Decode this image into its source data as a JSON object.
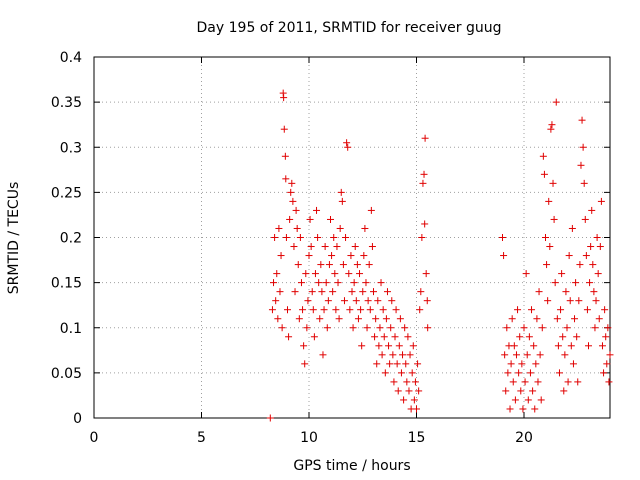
{
  "chart_data": {
    "type": "scatter",
    "title": "Day 195 of 2011, SRMTID for receiver guug",
    "xlabel": "GPS time / hours",
    "ylabel": "SRMTID / TECUs",
    "xlim": [
      0,
      24
    ],
    "ylim": [
      0,
      0.4
    ],
    "xticks": [
      0,
      5,
      10,
      15,
      20
    ],
    "xtick_labels": [
      "0",
      "5",
      "10",
      "15",
      "20"
    ],
    "yticks": [
      0,
      0.05,
      0.1,
      0.15,
      0.2,
      0.25,
      0.3,
      0.35,
      0.4
    ],
    "ytick_labels": [
      "0",
      "0.05",
      "0.1",
      "0.15",
      "0.2",
      "0.25",
      "0.3",
      "0.35",
      "0.4"
    ],
    "grid": true,
    "color": "#e00000",
    "marker": "plus",
    "series": [
      {
        "name": "SRMTID",
        "points": [
          [
            8.2,
            0.0
          ],
          [
            8.3,
            0.12
          ],
          [
            8.35,
            0.15
          ],
          [
            8.4,
            0.2
          ],
          [
            8.45,
            0.13
          ],
          [
            8.5,
            0.16
          ],
          [
            8.55,
            0.11
          ],
          [
            8.6,
            0.21
          ],
          [
            8.65,
            0.14
          ],
          [
            8.7,
            0.18
          ],
          [
            8.75,
            0.1
          ],
          [
            8.8,
            0.36
          ],
          [
            8.82,
            0.355
          ],
          [
            8.85,
            0.32
          ],
          [
            8.9,
            0.29
          ],
          [
            8.92,
            0.265
          ],
          [
            8.95,
            0.2
          ],
          [
            9.0,
            0.12
          ],
          [
            9.05,
            0.09
          ],
          [
            9.1,
            0.22
          ],
          [
            9.15,
            0.25
          ],
          [
            9.2,
            0.26
          ],
          [
            9.25,
            0.24
          ],
          [
            9.3,
            0.19
          ],
          [
            9.35,
            0.14
          ],
          [
            9.4,
            0.23
          ],
          [
            9.45,
            0.21
          ],
          [
            9.5,
            0.17
          ],
          [
            9.55,
            0.11
          ],
          [
            9.6,
            0.2
          ],
          [
            9.65,
            0.15
          ],
          [
            9.7,
            0.12
          ],
          [
            9.75,
            0.08
          ],
          [
            9.8,
            0.06
          ],
          [
            9.85,
            0.16
          ],
          [
            9.9,
            0.1
          ],
          [
            9.95,
            0.13
          ],
          [
            10.0,
            0.18
          ],
          [
            10.05,
            0.22
          ],
          [
            10.1,
            0.19
          ],
          [
            10.15,
            0.14
          ],
          [
            10.2,
            0.12
          ],
          [
            10.25,
            0.09
          ],
          [
            10.3,
            0.16
          ],
          [
            10.35,
            0.23
          ],
          [
            10.4,
            0.2
          ],
          [
            10.45,
            0.15
          ],
          [
            10.5,
            0.11
          ],
          [
            10.55,
            0.17
          ],
          [
            10.6,
            0.14
          ],
          [
            10.65,
            0.07
          ],
          [
            10.7,
            0.12
          ],
          [
            10.75,
            0.19
          ],
          [
            10.8,
            0.15
          ],
          [
            10.85,
            0.1
          ],
          [
            10.9,
            0.13
          ],
          [
            10.95,
            0.17
          ],
          [
            11.0,
            0.22
          ],
          [
            11.05,
            0.18
          ],
          [
            11.1,
            0.14
          ],
          [
            11.15,
            0.2
          ],
          [
            11.2,
            0.16
          ],
          [
            11.25,
            0.12
          ],
          [
            11.3,
            0.19
          ],
          [
            11.35,
            0.15
          ],
          [
            11.4,
            0.11
          ],
          [
            11.45,
            0.21
          ],
          [
            11.5,
            0.25
          ],
          [
            11.55,
            0.24
          ],
          [
            11.6,
            0.17
          ],
          [
            11.65,
            0.13
          ],
          [
            11.7,
            0.2
          ],
          [
            11.75,
            0.305
          ],
          [
            11.8,
            0.3
          ],
          [
            11.85,
            0.16
          ],
          [
            11.9,
            0.12
          ],
          [
            11.95,
            0.18
          ],
          [
            12.0,
            0.14
          ],
          [
            12.05,
            0.1
          ],
          [
            12.1,
            0.15
          ],
          [
            12.15,
            0.19
          ],
          [
            12.2,
            0.13
          ],
          [
            12.25,
            0.17
          ],
          [
            12.3,
            0.11
          ],
          [
            12.35,
            0.16
          ],
          [
            12.4,
            0.12
          ],
          [
            12.45,
            0.08
          ],
          [
            12.5,
            0.14
          ],
          [
            12.55,
            0.18
          ],
          [
            12.6,
            0.21
          ],
          [
            12.65,
            0.15
          ],
          [
            12.7,
            0.1
          ],
          [
            12.75,
            0.13
          ],
          [
            12.8,
            0.17
          ],
          [
            12.85,
            0.12
          ],
          [
            12.9,
            0.23
          ],
          [
            12.95,
            0.19
          ],
          [
            13.0,
            0.14
          ],
          [
            13.05,
            0.09
          ],
          [
            13.1,
            0.11
          ],
          [
            13.15,
            0.06
          ],
          [
            13.2,
            0.13
          ],
          [
            13.25,
            0.08
          ],
          [
            13.3,
            0.1
          ],
          [
            13.35,
            0.15
          ],
          [
            13.4,
            0.07
          ],
          [
            13.45,
            0.12
          ],
          [
            13.5,
            0.09
          ],
          [
            13.55,
            0.05
          ],
          [
            13.6,
            0.11
          ],
          [
            13.65,
            0.14
          ],
          [
            13.7,
            0.08
          ],
          [
            13.75,
            0.06
          ],
          [
            13.8,
            0.1
          ],
          [
            13.85,
            0.13
          ],
          [
            13.9,
            0.07
          ],
          [
            13.95,
            0.04
          ],
          [
            14.0,
            0.09
          ],
          [
            14.05,
            0.12
          ],
          [
            14.1,
            0.06
          ],
          [
            14.15,
            0.03
          ],
          [
            14.2,
            0.08
          ],
          [
            14.25,
            0.11
          ],
          [
            14.3,
            0.05
          ],
          [
            14.35,
            0.07
          ],
          [
            14.4,
            0.02
          ],
          [
            14.45,
            0.1
          ],
          [
            14.5,
            0.06
          ],
          [
            14.55,
            0.04
          ],
          [
            14.6,
            0.09
          ],
          [
            14.65,
            0.03
          ],
          [
            14.7,
            0.07
          ],
          [
            14.75,
            0.01
          ],
          [
            14.8,
            0.05
          ],
          [
            14.85,
            0.08
          ],
          [
            14.9,
            0.02
          ],
          [
            14.95,
            0.04
          ],
          [
            15.0,
            0.01
          ],
          [
            15.05,
            0.06
          ],
          [
            15.1,
            0.03
          ],
          [
            15.15,
            0.12
          ],
          [
            15.2,
            0.14
          ],
          [
            15.25,
            0.2
          ],
          [
            15.3,
            0.26
          ],
          [
            15.35,
            0.27
          ],
          [
            15.38,
            0.215
          ],
          [
            15.4,
            0.31
          ],
          [
            15.45,
            0.16
          ],
          [
            15.5,
            0.13
          ],
          [
            15.52,
            0.1
          ],
          [
            19.0,
            0.2
          ],
          [
            19.05,
            0.18
          ],
          [
            19.1,
            0.07
          ],
          [
            19.15,
            0.03
          ],
          [
            19.2,
            0.1
          ],
          [
            19.25,
            0.05
          ],
          [
            19.3,
            0.08
          ],
          [
            19.35,
            0.01
          ],
          [
            19.4,
            0.06
          ],
          [
            19.45,
            0.11
          ],
          [
            19.5,
            0.04
          ],
          [
            19.55,
            0.08
          ],
          [
            19.6,
            0.02
          ],
          [
            19.65,
            0.07
          ],
          [
            19.7,
            0.12
          ],
          [
            19.75,
            0.05
          ],
          [
            19.8,
            0.09
          ],
          [
            19.85,
            0.03
          ],
          [
            19.9,
            0.06
          ],
          [
            19.95,
            0.01
          ],
          [
            20.0,
            0.1
          ],
          [
            20.05,
            0.04
          ],
          [
            20.1,
            0.16
          ],
          [
            20.15,
            0.07
          ],
          [
            20.2,
            0.02
          ],
          [
            20.25,
            0.09
          ],
          [
            20.3,
            0.05
          ],
          [
            20.35,
            0.12
          ],
          [
            20.4,
            0.03
          ],
          [
            20.45,
            0.08
          ],
          [
            20.5,
            0.01
          ],
          [
            20.55,
            0.06
          ],
          [
            20.6,
            0.11
          ],
          [
            20.65,
            0.04
          ],
          [
            20.7,
            0.14
          ],
          [
            20.75,
            0.07
          ],
          [
            20.8,
            0.02
          ],
          [
            20.85,
            0.1
          ],
          [
            20.9,
            0.29
          ],
          [
            20.95,
            0.27
          ],
          [
            21.0,
            0.2
          ],
          [
            21.05,
            0.17
          ],
          [
            21.1,
            0.13
          ],
          [
            21.15,
            0.24
          ],
          [
            21.2,
            0.19
          ],
          [
            21.25,
            0.32
          ],
          [
            21.3,
            0.325
          ],
          [
            21.35,
            0.26
          ],
          [
            21.4,
            0.22
          ],
          [
            21.45,
            0.15
          ],
          [
            21.5,
            0.35
          ],
          [
            21.55,
            0.11
          ],
          [
            21.6,
            0.08
          ],
          [
            21.65,
            0.05
          ],
          [
            21.7,
            0.12
          ],
          [
            21.75,
            0.16
          ],
          [
            21.8,
            0.09
          ],
          [
            21.85,
            0.03
          ],
          [
            21.9,
            0.07
          ],
          [
            21.95,
            0.14
          ],
          [
            22.0,
            0.1
          ],
          [
            22.05,
            0.04
          ],
          [
            22.1,
            0.18
          ],
          [
            22.15,
            0.13
          ],
          [
            22.2,
            0.08
          ],
          [
            22.25,
            0.21
          ],
          [
            22.3,
            0.06
          ],
          [
            22.35,
            0.11
          ],
          [
            22.4,
            0.15
          ],
          [
            22.45,
            0.09
          ],
          [
            22.5,
            0.04
          ],
          [
            22.55,
            0.13
          ],
          [
            22.6,
            0.17
          ],
          [
            22.65,
            0.28
          ],
          [
            22.7,
            0.33
          ],
          [
            22.75,
            0.3
          ],
          [
            22.8,
            0.26
          ],
          [
            22.85,
            0.22
          ],
          [
            22.9,
            0.18
          ],
          [
            22.95,
            0.12
          ],
          [
            23.0,
            0.08
          ],
          [
            23.05,
            0.15
          ],
          [
            23.1,
            0.19
          ],
          [
            23.15,
            0.23
          ],
          [
            23.2,
            0.17
          ],
          [
            23.25,
            0.14
          ],
          [
            23.3,
            0.1
          ],
          [
            23.35,
            0.13
          ],
          [
            23.4,
            0.2
          ],
          [
            23.45,
            0.16
          ],
          [
            23.5,
            0.11
          ],
          [
            23.55,
            0.19
          ],
          [
            23.6,
            0.24
          ],
          [
            23.65,
            0.08
          ],
          [
            23.7,
            0.05
          ],
          [
            23.75,
            0.12
          ],
          [
            23.8,
            0.09
          ],
          [
            23.85,
            0.06
          ],
          [
            23.9,
            0.1
          ],
          [
            23.95,
            0.04
          ],
          [
            24.0,
            0.07
          ]
        ]
      }
    ]
  }
}
